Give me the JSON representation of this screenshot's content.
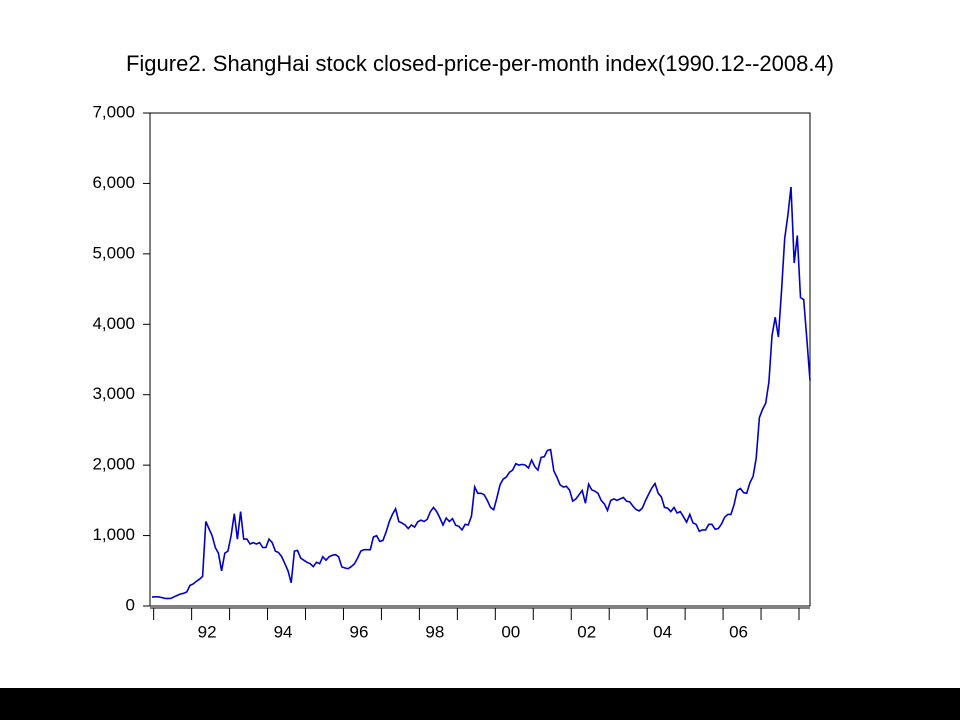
{
  "chart_data": {
    "type": "line",
    "title": "Figure2. ShangHai stock closed-price-per-month index(1990.12--2008.4)",
    "categories": [
      null,
      null,
      null,
      null,
      null,
      null,
      null,
      null,
      null,
      null,
      null,
      null,
      null,
      null,
      null,
      null,
      null,
      null,
      null,
      "92",
      null,
      null,
      null,
      null,
      null,
      null,
      null,
      null,
      null,
      null,
      null,
      null,
      null,
      null,
      null,
      null,
      null,
      null,
      null,
      null,
      null,
      null,
      null,
      "94",
      null,
      null,
      null,
      null,
      null,
      null,
      null,
      null,
      null,
      null,
      null,
      null,
      null,
      null,
      null,
      null,
      null,
      null,
      null,
      null,
      null,
      null,
      null,
      "96",
      null,
      null,
      null,
      null,
      null,
      null,
      null,
      null,
      null,
      null,
      null,
      null,
      null,
      null,
      null,
      null,
      null,
      null,
      null,
      null,
      null,
      null,
      null,
      "98",
      null,
      null,
      null,
      null,
      null,
      null,
      null,
      null,
      null,
      null,
      null,
      null,
      null,
      null,
      null,
      null,
      null,
      null,
      null,
      null,
      null,
      null,
      null,
      "00",
      null,
      null,
      null,
      null,
      null,
      null,
      null,
      null,
      null,
      null,
      null,
      null,
      null,
      null,
      null,
      null,
      null,
      null,
      null,
      null,
      null,
      null,
      null,
      "02",
      null,
      null,
      null,
      null,
      null,
      null,
      null,
      null,
      null,
      null,
      null,
      null,
      null,
      null,
      null,
      null,
      null,
      null,
      null,
      null,
      null,
      null,
      null,
      "04",
      null,
      null,
      null,
      null,
      null,
      null,
      null,
      null,
      null,
      null,
      null,
      null,
      null,
      null,
      null,
      null,
      null,
      null,
      null,
      null,
      null,
      null,
      null,
      "06",
      null,
      null,
      null,
      null,
      null,
      null,
      null,
      null,
      null,
      null,
      null,
      null,
      null,
      null,
      null,
      null,
      null,
      null,
      null,
      null,
      null
    ],
    "series": [
      {
        "color": "#0000cc",
        "values": [
          127,
          130,
          130,
          120,
          110,
          105,
          110,
          130,
          150,
          170,
          180,
          200,
          292,
          313,
          350,
          380,
          420,
          1200,
          1100,
          1000,
          830,
          750,
          500,
          750,
          780,
          1000,
          1310,
          950,
          1340,
          950,
          950,
          880,
          900,
          880,
          900,
          830,
          830,
          950,
          900,
          780,
          760,
          700,
          600,
          500,
          330,
          780,
          790,
          680,
          650,
          620,
          600,
          560,
          620,
          600,
          700,
          650,
          700,
          720,
          730,
          700,
          555,
          540,
          530,
          560,
          600,
          680,
          780,
          800,
          800,
          800,
          980,
          1000,
          917,
          930,
          1050,
          1200,
          1300,
          1380,
          1200,
          1180,
          1150,
          1100,
          1150,
          1120,
          1194,
          1220,
          1200,
          1230,
          1340,
          1400,
          1340,
          1250,
          1150,
          1250,
          1200,
          1240,
          1147,
          1130,
          1080,
          1160,
          1150,
          1280,
          1690,
          1600,
          1600,
          1580,
          1500,
          1400,
          1367,
          1530,
          1720,
          1800,
          1830,
          1900,
          1930,
          2020,
          2000,
          2010,
          2000,
          1960,
          2073,
          1980,
          1930,
          2110,
          2120,
          2210,
          2220,
          1920,
          1830,
          1720,
          1690,
          1700,
          1646,
          1490,
          1520,
          1580,
          1640,
          1460,
          1730,
          1650,
          1630,
          1600,
          1500,
          1450,
          1358,
          1500,
          1520,
          1500,
          1520,
          1540,
          1490,
          1480,
          1420,
          1370,
          1350,
          1390,
          1497,
          1590,
          1675,
          1740,
          1600,
          1550,
          1400,
          1390,
          1340,
          1400,
          1320,
          1340,
          1266,
          1190,
          1300,
          1180,
          1160,
          1060,
          1080,
          1080,
          1160,
          1160,
          1090,
          1100,
          1161,
          1260,
          1300,
          1300,
          1440,
          1640,
          1670,
          1610,
          1600,
          1750,
          1840,
          2100,
          2675,
          2790,
          2880,
          3180,
          3840,
          4100,
          3820,
          4470,
          5220,
          5550,
          5950,
          4870,
          5260,
          4380,
          4350,
          3800,
          3200
        ]
      }
    ],
    "ylim": [
      0,
      7000
    ],
    "yticks": [
      0,
      {
        "value": 1000,
        "label": "1,000"
      },
      {
        "value": 2000,
        "label": "2,000"
      },
      {
        "value": 3000,
        "label": "3,000"
      },
      {
        "value": 4000,
        "label": "4,000"
      },
      {
        "value": 5000,
        "label": "5,000"
      },
      {
        "value": 6000,
        "label": "6,000"
      },
      {
        "value": 7000,
        "label": "7,000"
      }
    ],
    "grid": false
  }
}
